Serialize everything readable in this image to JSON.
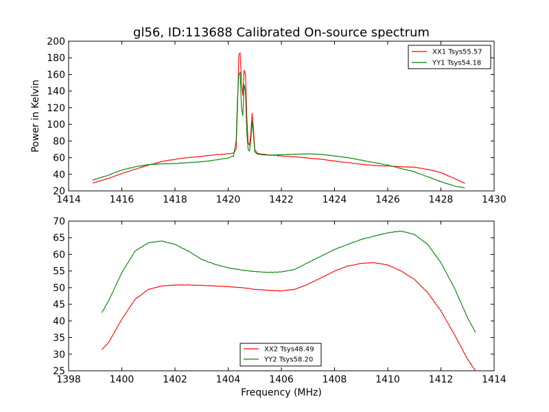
{
  "figure_title": "gl56, ID:113688 Calibrated On-source spectrum",
  "chart_data": [
    {
      "type": "line",
      "title": "gl56, ID:113688 Calibrated On-source spectrum",
      "xlabel": "",
      "ylabel": "Power in Kelvin",
      "xlim": [
        1414,
        1430
      ],
      "ylim": [
        20,
        200
      ],
      "xticks": [
        "1414",
        "1416",
        "1418",
        "1420",
        "1422",
        "1424",
        "1426",
        "1428",
        "1430"
      ],
      "yticks": [
        "20",
        "40",
        "60",
        "80",
        "100",
        "120",
        "140",
        "160",
        "180",
        "200"
      ],
      "grid": false,
      "legend_position": "top-right",
      "series": [
        {
          "name": "XX1 Tsys55.57",
          "color": "#ff0000",
          "points": [
            [
              1414.9,
              29.5
            ],
            [
              1415.5,
              35
            ],
            [
              1416,
              41
            ],
            [
              1416.5,
              46
            ],
            [
              1417,
              51
            ],
            [
              1417.5,
              55.5
            ],
            [
              1418,
              58
            ],
            [
              1418.5,
              60
            ],
            [
              1419,
              61.5
            ],
            [
              1419.5,
              63.5
            ],
            [
              1420,
              64.5
            ],
            [
              1420.2,
              65.5
            ],
            [
              1420.3,
              70
            ],
            [
              1420.35,
              120
            ],
            [
              1420.4,
              183
            ],
            [
              1420.45,
              186
            ],
            [
              1420.5,
              150
            ],
            [
              1420.55,
              135
            ],
            [
              1420.6,
              165
            ],
            [
              1420.65,
              160
            ],
            [
              1420.7,
              110
            ],
            [
              1420.75,
              78
            ],
            [
              1420.8,
              75
            ],
            [
              1420.85,
              88
            ],
            [
              1420.9,
              113
            ],
            [
              1420.95,
              95
            ],
            [
              1421,
              70
            ],
            [
              1421.1,
              65
            ],
            [
              1421.5,
              63.5
            ],
            [
              1422,
              62
            ],
            [
              1422.5,
              61
            ],
            [
              1423,
              59.5
            ],
            [
              1423.5,
              58
            ],
            [
              1424,
              56
            ],
            [
              1424.5,
              54
            ],
            [
              1425,
              52
            ],
            [
              1425.5,
              50.5
            ],
            [
              1426,
              50
            ],
            [
              1426.5,
              49
            ],
            [
              1427,
              48.5
            ],
            [
              1427.5,
              46
            ],
            [
              1428,
              42
            ],
            [
              1428.5,
              35
            ],
            [
              1428.9,
              29
            ]
          ]
        },
        {
          "name": "YY1 Tsys54.18",
          "color": "#008000",
          "points": [
            [
              1414.9,
              33
            ],
            [
              1415.5,
              39
            ],
            [
              1416,
              45
            ],
            [
              1416.5,
              49
            ],
            [
              1417,
              51.5
            ],
            [
              1417.5,
              52.5
            ],
            [
              1418,
              53
            ],
            [
              1418.5,
              54
            ],
            [
              1419,
              55
            ],
            [
              1419.5,
              57
            ],
            [
              1420,
              59.5
            ],
            [
              1420.2,
              62
            ],
            [
              1420.3,
              80
            ],
            [
              1420.35,
              130
            ],
            [
              1420.4,
              160
            ],
            [
              1420.45,
              163
            ],
            [
              1420.5,
              120
            ],
            [
              1420.55,
              110
            ],
            [
              1420.6,
              148
            ],
            [
              1420.65,
              140
            ],
            [
              1420.7,
              90
            ],
            [
              1420.75,
              70
            ],
            [
              1420.8,
              68
            ],
            [
              1420.85,
              80
            ],
            [
              1420.9,
              104
            ],
            [
              1420.95,
              88
            ],
            [
              1421,
              67
            ],
            [
              1421.1,
              64
            ],
            [
              1421.5,
              63
            ],
            [
              1422,
              63.5
            ],
            [
              1422.5,
              64
            ],
            [
              1423,
              64.5
            ],
            [
              1423.5,
              64
            ],
            [
              1424,
              62
            ],
            [
              1424.5,
              60
            ],
            [
              1425,
              57
            ],
            [
              1425.5,
              54
            ],
            [
              1426,
              51
            ],
            [
              1426.5,
              47
            ],
            [
              1427,
              43
            ],
            [
              1427.5,
              37
            ],
            [
              1428,
              31
            ],
            [
              1428.5,
              26
            ],
            [
              1428.9,
              23.5
            ]
          ]
        }
      ]
    },
    {
      "type": "line",
      "title": "",
      "xlabel": "Frequency (MHz)",
      "ylabel": "",
      "xlim": [
        1398,
        1414
      ],
      "ylim": [
        25,
        70
      ],
      "xticks": [
        "1398",
        "1400",
        "1402",
        "1404",
        "1406",
        "1408",
        "1410",
        "1412",
        "1414"
      ],
      "yticks": [
        "25",
        "30",
        "35",
        "40",
        "45",
        "50",
        "55",
        "60",
        "65",
        "70"
      ],
      "grid": false,
      "legend_position": "bottom-center",
      "series": [
        {
          "name": "XX2 Tsys48.49",
          "color": "#ff0000",
          "points": [
            [
              1399.25,
              31.3
            ],
            [
              1399.5,
              33.5
            ],
            [
              1400,
              40.5
            ],
            [
              1400.5,
              46.5
            ],
            [
              1401,
              49.5
            ],
            [
              1401.5,
              50.5
            ],
            [
              1402,
              50.8
            ],
            [
              1402.5,
              50.8
            ],
            [
              1403,
              50.7
            ],
            [
              1403.5,
              50.5
            ],
            [
              1404,
              50.3
            ],
            [
              1404.5,
              50
            ],
            [
              1405,
              49.5
            ],
            [
              1405.5,
              49.2
            ],
            [
              1406,
              49
            ],
            [
              1406.5,
              49.5
            ],
            [
              1407,
              51
            ],
            [
              1407.5,
              53
            ],
            [
              1408,
              55
            ],
            [
              1408.5,
              56.5
            ],
            [
              1409,
              57.3
            ],
            [
              1409.5,
              57.5
            ],
            [
              1410,
              56.8
            ],
            [
              1410.5,
              55
            ],
            [
              1411,
              52.5
            ],
            [
              1411.5,
              48.5
            ],
            [
              1412,
              43
            ],
            [
              1412.5,
              36
            ],
            [
              1413,
              28.5
            ],
            [
              1413.3,
              25
            ]
          ]
        },
        {
          "name": "YY2 Tsys58.20",
          "color": "#008000",
          "points": [
            [
              1399.25,
              42.5
            ],
            [
              1399.5,
              46
            ],
            [
              1400,
              54.5
            ],
            [
              1400.5,
              61
            ],
            [
              1401,
              63.5
            ],
            [
              1401.5,
              64
            ],
            [
              1402,
              63
            ],
            [
              1402.5,
              61
            ],
            [
              1403,
              58.5
            ],
            [
              1403.5,
              57
            ],
            [
              1404,
              56
            ],
            [
              1404.5,
              55.3
            ],
            [
              1405,
              54.8
            ],
            [
              1405.5,
              54.6
            ],
            [
              1406,
              54.7
            ],
            [
              1406.5,
              55.5
            ],
            [
              1407,
              57.5
            ],
            [
              1407.5,
              59.5
            ],
            [
              1408,
              61.5
            ],
            [
              1408.5,
              63
            ],
            [
              1409,
              64.5
            ],
            [
              1409.5,
              65.5
            ],
            [
              1410,
              66.5
            ],
            [
              1410.5,
              67
            ],
            [
              1411,
              66
            ],
            [
              1411.5,
              63
            ],
            [
              1412,
              57.5
            ],
            [
              1412.5,
              50
            ],
            [
              1413,
              41
            ],
            [
              1413.3,
              36.5
            ]
          ]
        }
      ]
    }
  ]
}
